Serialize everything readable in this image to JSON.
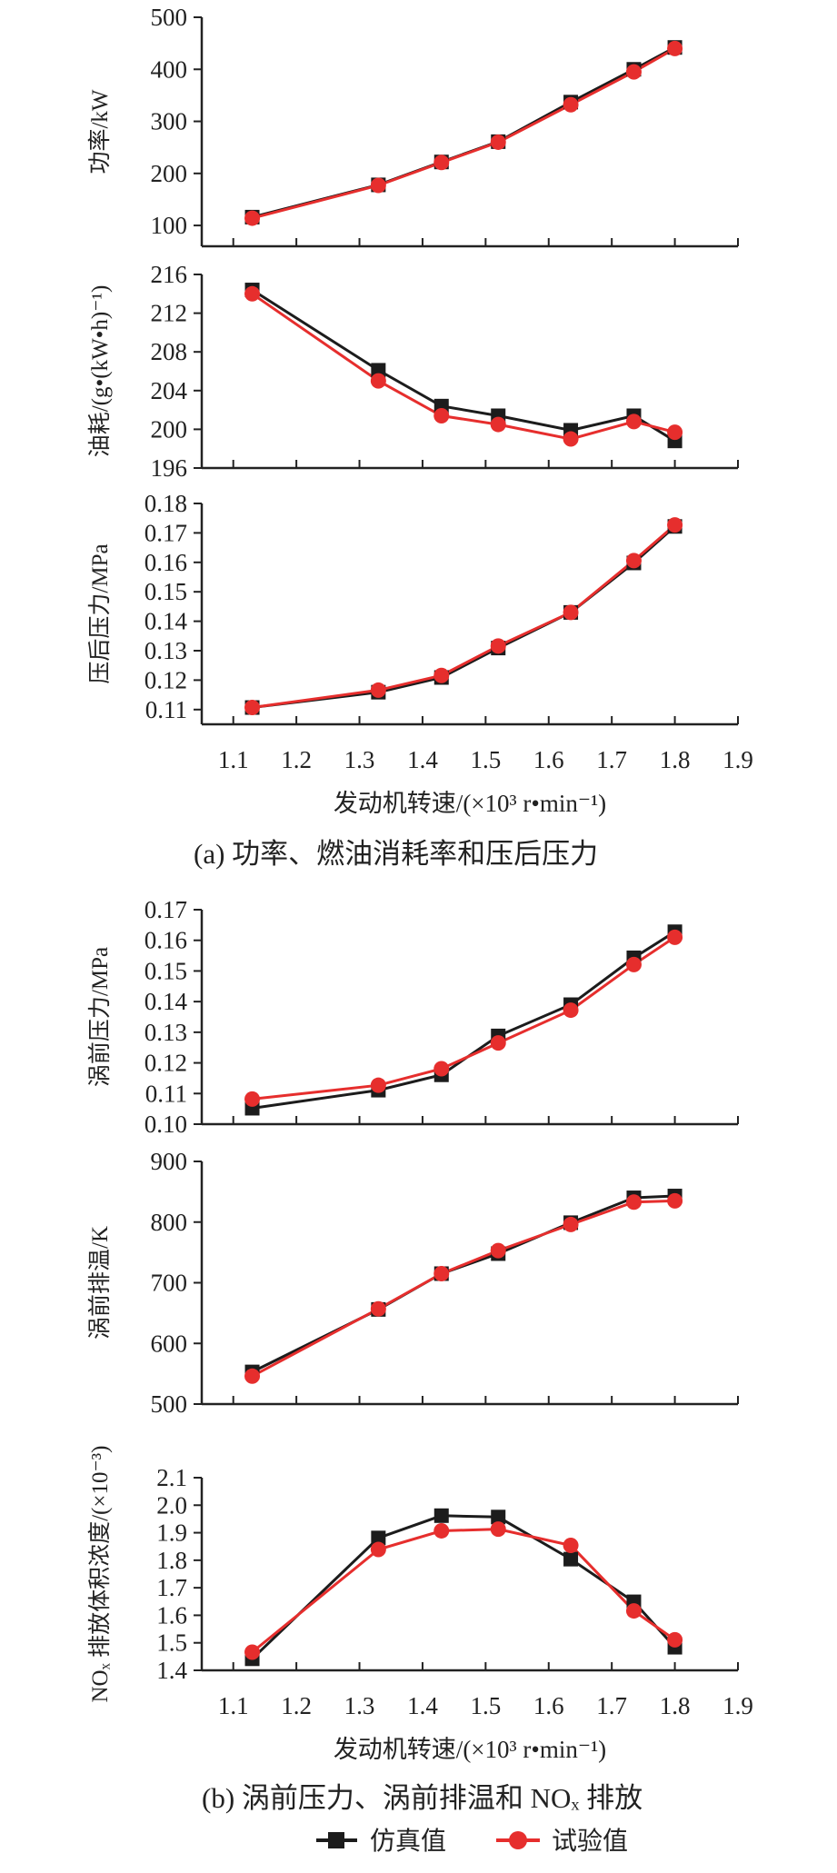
{
  "captions": {
    "a": "(a) 功率、燃油消耗率和压后压力",
    "b": "(b) 涡前压力、涡前排温和 NOₓ 排放"
  },
  "legend": {
    "sim": "仿真值",
    "test": "试验值"
  },
  "colors": {
    "sim": "#1c1c1c",
    "test": "#e62e2d"
  },
  "x_axis": {
    "label": "发动机转速/(×10³ r•min⁻¹)",
    "ticks": [
      "1.1",
      "1.2",
      "1.3",
      "1.4",
      "1.5",
      "1.6",
      "1.7",
      "1.8",
      "1.9"
    ],
    "xlim": [
      1.05,
      1.9
    ]
  },
  "chart_data": [
    {
      "type": "line",
      "ylabel": "功率/kW",
      "ylim": [
        60,
        500
      ],
      "yticks": [
        "100",
        "200",
        "300",
        "400",
        "500"
      ],
      "x": [
        1.13,
        1.33,
        1.43,
        1.52,
        1.635,
        1.735,
        1.8
      ],
      "series": [
        {
          "name": "仿真值",
          "values": [
            116,
            178,
            222,
            261,
            337,
            400,
            442
          ]
        },
        {
          "name": "试验值",
          "values": [
            114,
            177,
            221,
            260,
            332,
            395,
            440
          ]
        }
      ]
    },
    {
      "type": "line",
      "ylabel": "油耗/(g•(kW•h)⁻¹)",
      "ylim": [
        196,
        216
      ],
      "yticks": [
        "196",
        "200",
        "204",
        "208",
        "212",
        "216"
      ],
      "x": [
        1.13,
        1.33,
        1.43,
        1.52,
        1.635,
        1.735,
        1.8
      ],
      "series": [
        {
          "name": "仿真值",
          "values": [
            214.4,
            206.1,
            202.4,
            201.4,
            199.9,
            201.4,
            198.8
          ]
        },
        {
          "name": "试验值",
          "values": [
            214.0,
            205.0,
            201.4,
            200.5,
            199.0,
            200.8,
            199.7
          ]
        }
      ]
    },
    {
      "type": "line",
      "ylabel": "压后压力/MPa",
      "ylim": [
        0.105,
        0.18
      ],
      "yticks": [
        "0.11",
        "0.12",
        "0.13",
        "0.14",
        "0.15",
        "0.16",
        "0.17",
        "0.18"
      ],
      "x": [
        1.13,
        1.33,
        1.43,
        1.52,
        1.635,
        1.735,
        1.8
      ],
      "series": [
        {
          "name": "仿真值",
          "values": [
            0.1107,
            0.1159,
            0.1209,
            0.1309,
            0.143,
            0.1598,
            0.1722
          ]
        },
        {
          "name": "试验值",
          "values": [
            0.1107,
            0.1166,
            0.1216,
            0.1316,
            0.143,
            0.1606,
            0.1727
          ]
        }
      ]
    },
    {
      "type": "line",
      "ylabel": "涡前压力/MPa",
      "ylim": [
        0.1,
        0.17
      ],
      "yticks": [
        "0.10",
        "0.11",
        "0.12",
        "0.13",
        "0.14",
        "0.15",
        "0.16",
        "0.17"
      ],
      "x": [
        1.13,
        1.33,
        1.43,
        1.52,
        1.635,
        1.735,
        1.8
      ],
      "series": [
        {
          "name": "仿真值",
          "values": [
            0.1052,
            0.1111,
            0.1161,
            0.1288,
            0.139,
            0.1543,
            0.1628
          ]
        },
        {
          "name": "试验值",
          "values": [
            0.1082,
            0.1127,
            0.1181,
            0.1265,
            0.1372,
            0.1521,
            0.161
          ]
        }
      ]
    },
    {
      "type": "line",
      "ylabel": "涡前排温/K",
      "ylim": [
        500,
        900
      ],
      "yticks": [
        "500",
        "600",
        "700",
        "800",
        "900"
      ],
      "x": [
        1.13,
        1.33,
        1.43,
        1.52,
        1.635,
        1.735,
        1.8
      ],
      "series": [
        {
          "name": "仿真值",
          "values": [
            553,
            656,
            715,
            748,
            799,
            840,
            843
          ]
        },
        {
          "name": "试验值",
          "values": [
            546,
            657,
            715,
            753,
            796,
            833,
            835
          ]
        }
      ]
    },
    {
      "type": "line",
      "ylabel": "NOₓ 排放体积浓度/(×10⁻³)",
      "ylim": [
        1.4,
        2.1
      ],
      "yticks": [
        "1.4",
        "1.5",
        "1.6",
        "1.7",
        "1.8",
        "1.9",
        "2.0",
        "2.1"
      ],
      "x": [
        1.13,
        1.33,
        1.43,
        1.52,
        1.635,
        1.735,
        1.8
      ],
      "series": [
        {
          "name": "仿真值",
          "values": [
            1.442,
            1.881,
            1.962,
            1.957,
            1.804,
            1.649,
            1.484
          ]
        },
        {
          "name": "试验值",
          "values": [
            1.466,
            1.839,
            1.907,
            1.913,
            1.854,
            1.616,
            1.511
          ]
        }
      ]
    }
  ]
}
